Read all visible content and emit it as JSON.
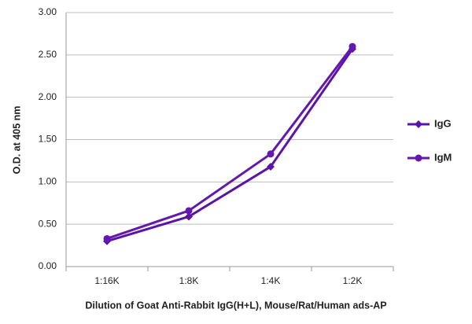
{
  "chart_data": {
    "type": "line",
    "x_label": "Dilution of Goat Anti-Rabbit IgG(H+L), Mouse/Rat/Human ads-AP",
    "y_label": "O.D. at 405 nm",
    "categories": [
      "1:16K",
      "1:8K",
      "1:4K",
      "1:2K"
    ],
    "series": [
      {
        "name": "IgG",
        "color": "#5a14a8",
        "marker": "diamond",
        "values": [
          0.3,
          0.59,
          1.18,
          2.57
        ]
      },
      {
        "name": "IgM",
        "color": "#6418b0",
        "marker": "circle",
        "values": [
          0.33,
          0.66,
          1.33,
          2.6
        ]
      }
    ],
    "ylim": [
      0,
      3
    ],
    "yticks": [
      {
        "value": 0,
        "label": "0.00"
      },
      {
        "value": 0.5,
        "label": "0.50"
      },
      {
        "value": 1,
        "label": "1.00"
      },
      {
        "value": 1.5,
        "label": "1.50"
      },
      {
        "value": 2,
        "label": "2.00"
      },
      {
        "value": 2.5,
        "label": "2.50"
      },
      {
        "value": 3,
        "label": "3.00"
      }
    ],
    "grid": true,
    "legend": "right"
  }
}
